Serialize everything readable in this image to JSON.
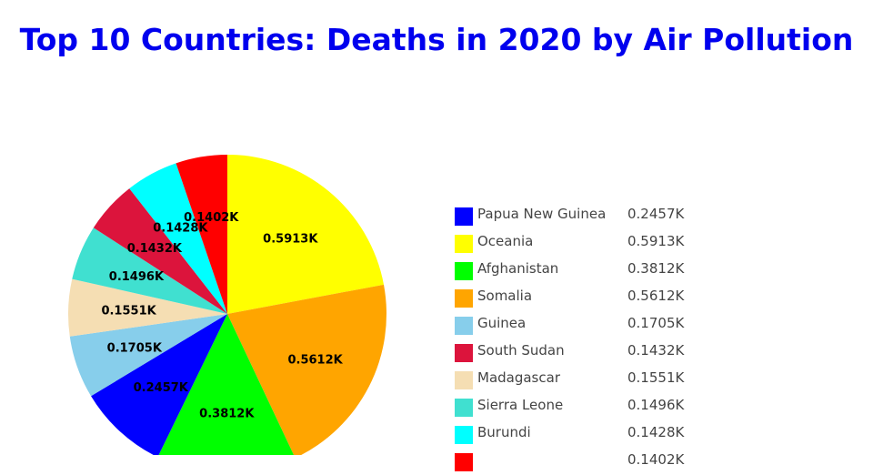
{
  "chart_data": {
    "type": "pie",
    "title": "Top 10 Countries: Deaths in 2020 by Air Pollution",
    "slices": [
      {
        "label": "Papua New Guinea",
        "value": 0.2457,
        "display": "0.2457K",
        "color": "#0000ff"
      },
      {
        "label": "Oceania",
        "value": 0.5913,
        "display": "0.5913K",
        "color": "#ffff00"
      },
      {
        "label": "Afghanistan",
        "value": 0.3812,
        "display": "0.3812K",
        "color": "#00ff00"
      },
      {
        "label": "Somalia",
        "value": 0.5612,
        "display": "0.5612K",
        "color": "#ffa500"
      },
      {
        "label": "Guinea",
        "value": 0.1705,
        "display": "0.1705K",
        "color": "#87ceeb"
      },
      {
        "label": "South Sudan",
        "value": 0.1432,
        "display": "0.1432K",
        "color": "#dc143c"
      },
      {
        "label": "Madagascar",
        "value": 0.1551,
        "display": "0.1551K",
        "color": "#f5deb3"
      },
      {
        "label": "Sierra Leone",
        "value": 0.1496,
        "display": "0.1496K",
        "color": "#40e0d0"
      },
      {
        "label": "Burundi",
        "value": 0.1428,
        "display": "0.1428K",
        "color": "#00ffff"
      },
      {
        "label": "",
        "value": 0.1402,
        "display": "0.1402K",
        "color": "#ff0000"
      }
    ],
    "slice_order": [
      "Oceania",
      "Somalia",
      "Afghanistan",
      "Papua New Guinea",
      "Guinea",
      "Madagascar",
      "Sierra Leone",
      "South Sudan",
      "Burundi",
      ""
    ],
    "direction": "clockwise",
    "start": "top",
    "legend_position": "right"
  }
}
